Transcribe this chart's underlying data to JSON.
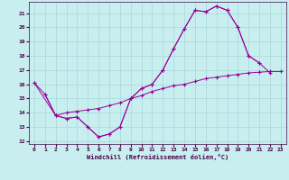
{
  "xlabel": "Windchill (Refroidissement éolien,°C)",
  "bg_color": "#c8eef0",
  "grid_color": "#a8d8d8",
  "line_color": "#990099",
  "xlim": [
    -0.5,
    23.5
  ],
  "ylim": [
    11.8,
    21.8
  ],
  "yticks": [
    12,
    13,
    14,
    15,
    16,
    17,
    18,
    19,
    20,
    21
  ],
  "xticks": [
    0,
    1,
    2,
    3,
    4,
    5,
    6,
    7,
    8,
    9,
    10,
    11,
    12,
    13,
    14,
    15,
    16,
    17,
    18,
    19,
    20,
    21,
    22,
    23
  ],
  "series1_x": [
    0,
    1,
    2,
    3,
    4,
    5,
    6,
    7,
    8,
    9,
    10,
    11,
    12,
    13,
    14,
    15,
    16,
    17,
    18,
    19,
    20,
    21
  ],
  "series1_y": [
    16.1,
    15.3,
    13.8,
    13.6,
    13.7,
    13.0,
    12.3,
    12.5,
    13.0,
    15.0,
    15.7,
    16.0,
    17.0,
    18.5,
    19.9,
    21.2,
    21.1,
    21.5,
    21.2,
    20.0,
    18.0,
    17.5
  ],
  "series2_x": [
    0,
    2,
    3,
    4,
    5,
    6,
    7,
    8,
    9,
    10,
    11,
    12,
    13,
    14,
    15,
    16,
    17,
    18,
    19,
    20,
    21,
    22
  ],
  "series2_y": [
    16.1,
    13.8,
    13.6,
    13.7,
    13.0,
    12.3,
    12.5,
    13.0,
    15.0,
    15.7,
    16.0,
    17.0,
    18.5,
    19.9,
    21.2,
    21.1,
    21.5,
    21.2,
    20.0,
    18.0,
    17.5,
    16.8
  ],
  "series3_x": [
    1,
    2,
    3,
    4,
    5,
    6,
    7,
    8,
    9,
    10,
    11,
    12,
    13,
    14,
    15,
    16,
    17,
    18,
    19,
    20,
    21,
    22,
    23
  ],
  "series3_y": [
    15.3,
    13.8,
    14.0,
    14.1,
    14.2,
    14.3,
    14.5,
    14.7,
    15.0,
    15.2,
    15.5,
    15.7,
    15.9,
    16.0,
    16.2,
    16.4,
    16.5,
    16.6,
    16.7,
    16.8,
    16.85,
    16.9,
    16.9
  ]
}
